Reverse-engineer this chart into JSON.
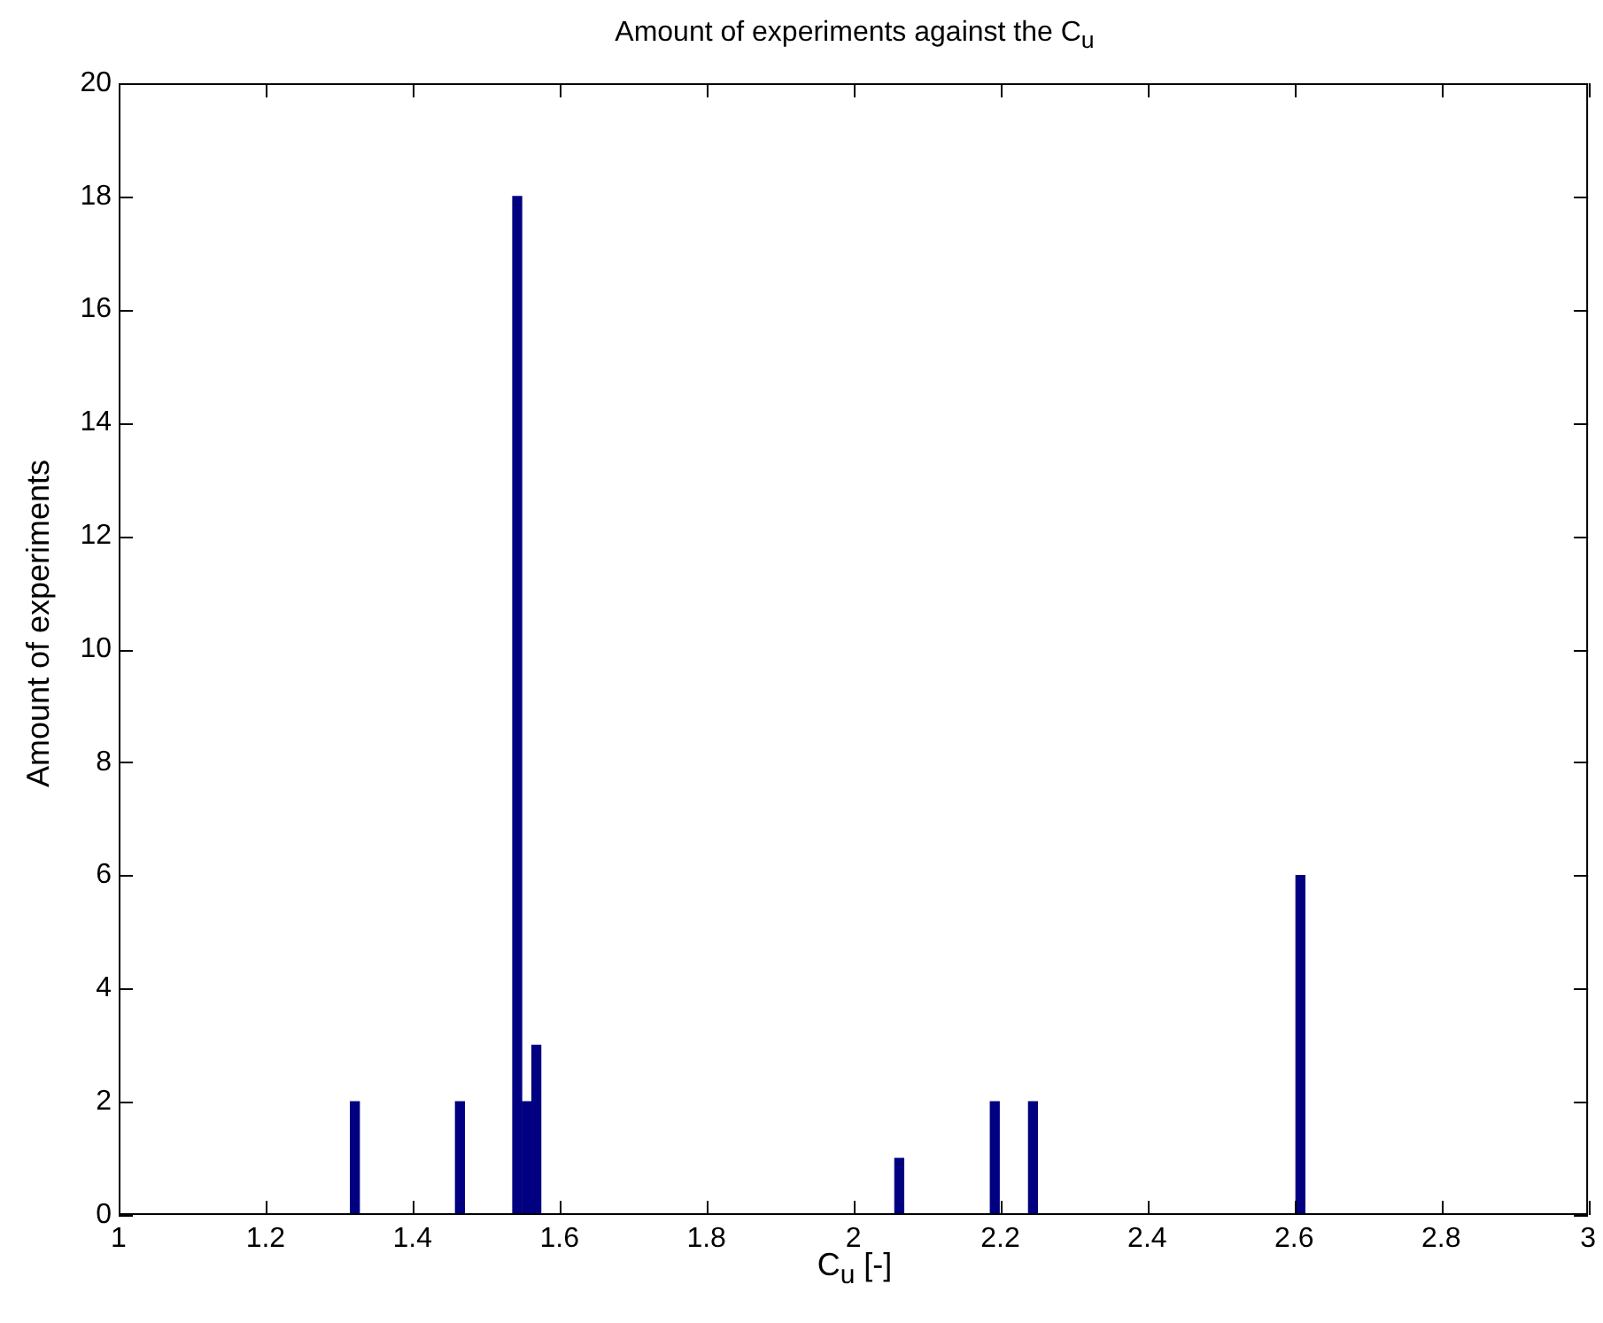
{
  "chart_data": {
    "type": "histogram",
    "title": "Amount of experiments against the C$_{u}$",
    "xlabel": "C$_{u}$ [-]",
    "ylabel": "Amount of experiments",
    "bins": [
      1.315,
      1.328,
      1.341,
      1.354,
      1.367,
      1.38,
      1.393,
      1.406,
      1.419,
      1.432,
      1.445,
      1.458,
      1.471,
      1.484,
      1.497,
      1.51,
      1.523,
      1.536,
      1.549,
      1.562,
      1.575,
      1.588,
      1.601,
      1.614,
      1.627,
      1.64,
      1.653,
      1.666,
      1.679,
      1.692,
      1.705,
      1.718,
      1.731,
      1.744,
      1.757,
      1.77,
      1.783,
      1.796,
      1.809,
      1.822,
      1.835,
      1.848,
      1.861,
      1.874,
      1.887,
      1.9,
      1.913,
      1.926,
      1.939,
      1.952,
      1.965,
      1.978,
      1.991,
      2.004,
      2.017,
      2.03,
      2.043,
      2.056,
      2.069,
      2.082,
      2.095,
      2.108,
      2.121,
      2.134,
      2.147,
      2.16,
      2.173,
      2.186,
      2.199,
      2.212,
      2.225,
      2.238,
      2.251,
      2.264,
      2.277,
      2.29,
      2.303,
      2.316,
      2.329,
      2.342,
      2.355,
      2.368,
      2.381,
      2.394,
      2.407,
      2.42,
      2.433,
      2.446,
      2.459,
      2.472,
      2.485,
      2.498,
      2.511,
      2.524,
      2.537,
      2.55,
      2.563,
      2.576,
      2.589,
      2.602,
      2.615
    ],
    "values": [
      2,
      0,
      0,
      0,
      0,
      0,
      0,
      0,
      0,
      0,
      0,
      2,
      0,
      0,
      0,
      0,
      0,
      18,
      2,
      3,
      0,
      0,
      0,
      0,
      0,
      0,
      0,
      0,
      0,
      0,
      0,
      0,
      0,
      0,
      0,
      0,
      0,
      0,
      0,
      0,
      0,
      0,
      0,
      0,
      0,
      0,
      0,
      0,
      0,
      0,
      0,
      0,
      0,
      0,
      0,
      0,
      0,
      1,
      0,
      0,
      0,
      0,
      0,
      0,
      0,
      0,
      0,
      2,
      0,
      0,
      0,
      2,
      0,
      0,
      0,
      0,
      0,
      0,
      0,
      0,
      0,
      0,
      0,
      0,
      0,
      0,
      0,
      0,
      0,
      0,
      0,
      0,
      0,
      0,
      0,
      0,
      0,
      0,
      0,
      6
    ],
    "color": "#000080",
    "xlim": [
      1,
      3
    ],
    "xticks": [
      1,
      1.2,
      1.4,
      1.6,
      1.8,
      2,
      2.2,
      2.4,
      2.6,
      2.8,
      3
    ],
    "ylim": [
      0,
      20
    ],
    "yticks": [
      0,
      2,
      4,
      6,
      8,
      10,
      12,
      14,
      16,
      18,
      20
    ],
    "grid": false,
    "legend": false
  }
}
